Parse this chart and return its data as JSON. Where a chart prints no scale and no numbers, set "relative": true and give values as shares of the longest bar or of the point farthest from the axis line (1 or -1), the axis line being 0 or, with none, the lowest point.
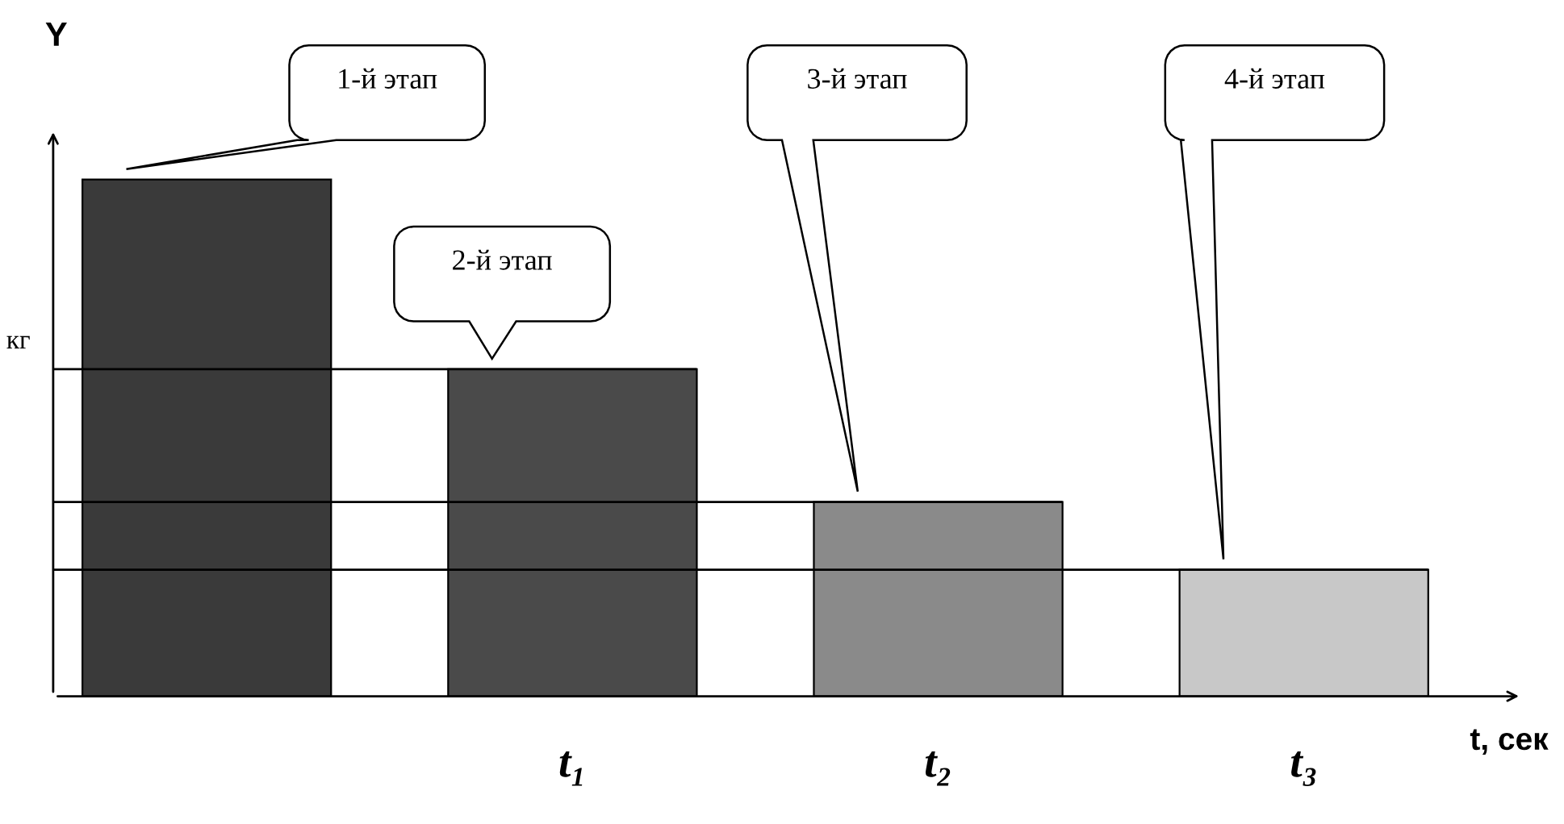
{
  "chart_data": {
    "type": "bar",
    "relative": true,
    "categories": [
      null,
      "t₁",
      "t₂",
      "t₃"
    ],
    "values": [
      1,
      0.633,
      0.376,
      0.245
    ],
    "colors": [
      "#3a3a3a",
      "#4a4a4a",
      "#8a8a8a",
      "#c8c8c8"
    ],
    "ylabel": "кг",
    "xlabel": "t, сек",
    "title": "Y",
    "ref_lines": [
      {
        "axis": "y",
        "value": 0.633,
        "color": "#000000"
      },
      {
        "axis": "y",
        "value": 0.376,
        "color": "#000000"
      },
      {
        "axis": "y",
        "value": 0.245,
        "color": "#000000"
      }
    ],
    "annotations": [
      "1-й этап",
      "2-й этап",
      "3-й этап",
      "4-й этап"
    ],
    "grid": false
  }
}
